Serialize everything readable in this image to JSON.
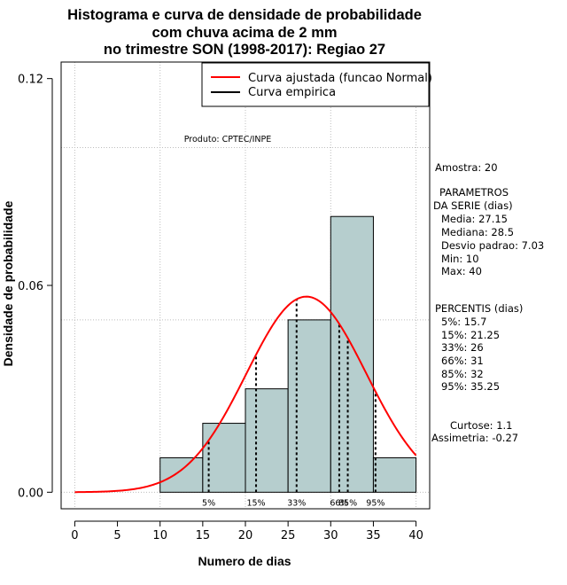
{
  "chart_data": {
    "type": "bar",
    "title_lines": [
      "Histograma e curva de densidade de probabilidade",
      "com chuva acima de 2 mm",
      "no trimestre SON (1998-2017): Regiao 27"
    ],
    "xlabel": "Numero de dias",
    "ylabel": "Densidade de probabilidade",
    "xlim": [
      -1.6,
      41.6
    ],
    "ylim": [
      -0.0048,
      0.1248
    ],
    "x_ticks": [
      0,
      5,
      10,
      15,
      20,
      25,
      30,
      35,
      40
    ],
    "x_tick_labels": [
      "0",
      "5",
      "10",
      "15",
      "20",
      "25",
      "30",
      "35",
      "40"
    ],
    "y_ticks": [
      0.0,
      0.06,
      0.12
    ],
    "y_tick_labels": [
      "0.00",
      "0.06",
      "0.12"
    ],
    "grid_y": [
      0.0,
      0.05,
      0.1
    ],
    "grid_x": [
      0,
      10,
      20,
      30,
      40
    ],
    "bins": [
      {
        "from": 10,
        "to": 15,
        "density": 0.01
      },
      {
        "from": 15,
        "to": 20,
        "density": 0.02
      },
      {
        "from": 20,
        "to": 25,
        "density": 0.03
      },
      {
        "from": 25,
        "to": 30,
        "density": 0.05
      },
      {
        "from": 30,
        "to": 35,
        "density": 0.08
      },
      {
        "from": 35,
        "to": 40,
        "density": 0.01
      }
    ],
    "normal_fit": {
      "mean": 27.15,
      "sd": 7.03,
      "x_from": 0,
      "x_to": 40,
      "color": "#ff0000"
    },
    "bar_fill": "#b6cece",
    "percentiles": [
      {
        "label": "5%",
        "value": 15.7
      },
      {
        "label": "15%",
        "value": 21.25
      },
      {
        "label": "33%",
        "value": 26
      },
      {
        "label": "66%",
        "value": 31
      },
      {
        "label": "85%",
        "value": 32
      },
      {
        "label": "95%",
        "value": 35.25
      }
    ],
    "legend": [
      {
        "label": "Curva ajustada (funcao Normal)",
        "color": "#ff0000"
      },
      {
        "label": "Curva empirica",
        "color": "#000000"
      }
    ],
    "product_note": "Produto: CPTEC/INPE",
    "side_text": {
      "sample": "Amostra: 20",
      "params_header_1": "PARAMETROS",
      "params_header_2": "DA SERIE (dias)",
      "params": [
        "Media: 27.15",
        "Mediana: 28.5",
        "Desvio padrao: 7.03",
        "Min: 10",
        "Max: 40"
      ],
      "percentis_header": "PERCENTIS (dias)",
      "percentis": [
        "5%: 15.7",
        "15%: 21.25",
        "33%: 26",
        "66%: 31",
        "85%: 32",
        "95%: 35.25"
      ],
      "curtose": "Curtose: 1.1",
      "assimetria": "Assimetria: -0.27"
    }
  }
}
